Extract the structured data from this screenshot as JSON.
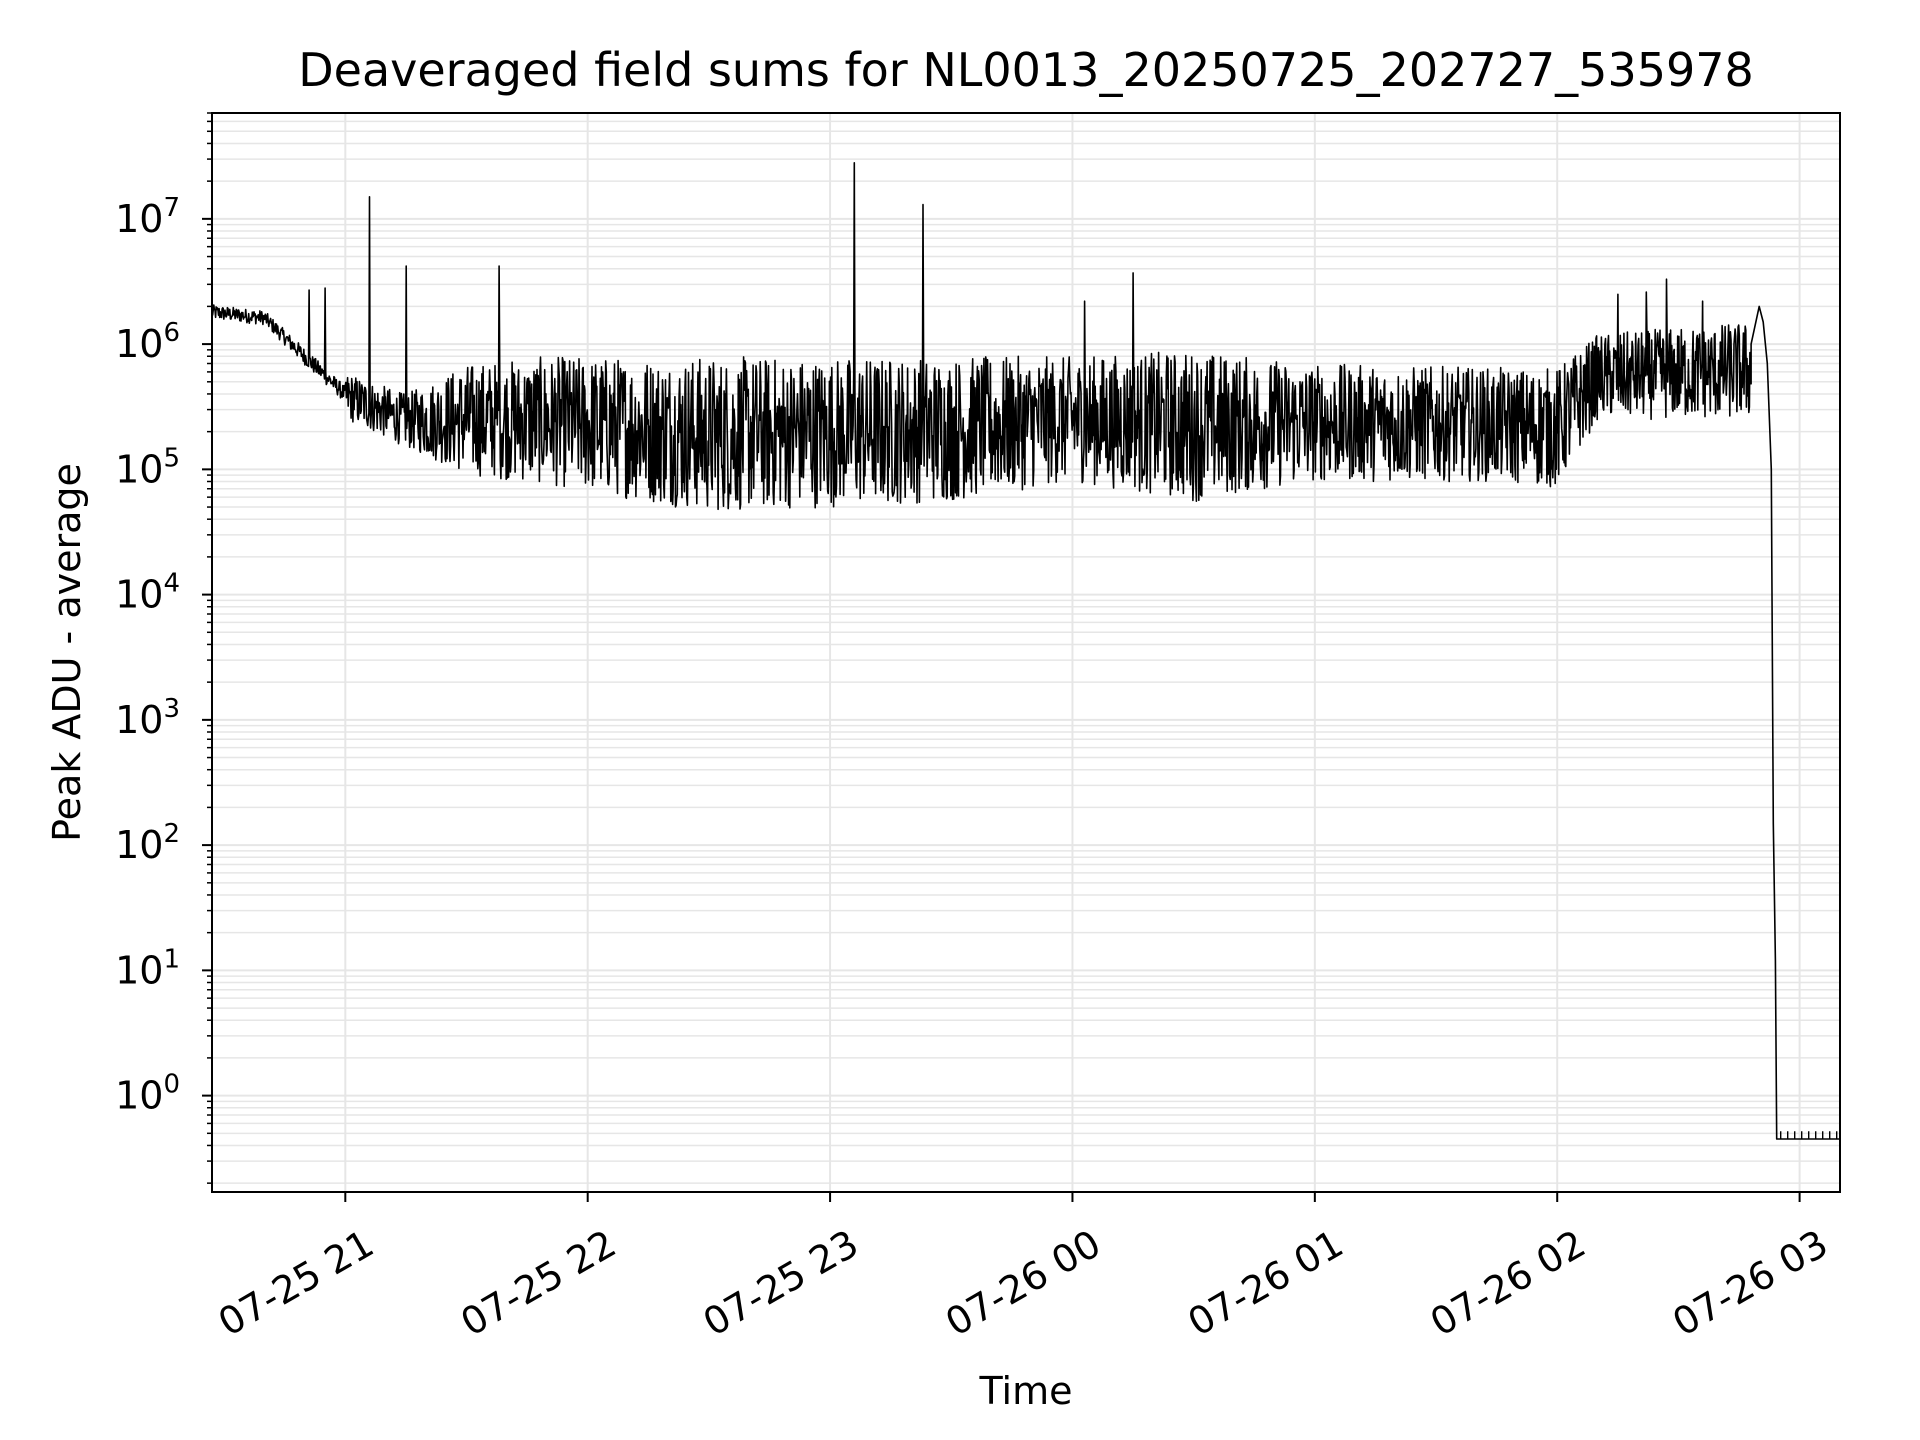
{
  "chart_data": {
    "type": "line",
    "title": "Deaveraged field sums for NL0013_20250725_202727_535978",
    "xlabel": "Time",
    "ylabel": "Peak ADU - average",
    "yscale": "log",
    "grid": true,
    "line_color": "#000000",
    "grid_color": "#e6e6e6",
    "x_ticks": [
      "07-25 21",
      "07-25 22",
      "07-25 23",
      "07-26 00",
      "07-26 01",
      "07-26 02",
      "07-26 03"
    ],
    "x_range": [
      "2025-07-25 20:27",
      "2025-07-26 03:10"
    ],
    "y_tick_labels": [
      {
        "base": "10",
        "exp": "0"
      },
      {
        "base": "10",
        "exp": "1"
      },
      {
        "base": "10",
        "exp": "2"
      },
      {
        "base": "10",
        "exp": "3"
      },
      {
        "base": "10",
        "exp": "4"
      },
      {
        "base": "10",
        "exp": "5"
      },
      {
        "base": "10",
        "exp": "6"
      },
      {
        "base": "10",
        "exp": "7"
      }
    ],
    "ylim": [
      0.17,
      70000000
    ],
    "envelope": [
      {
        "t": "2025-07-25 20:27",
        "lo": 1200000,
        "hi": 2600000
      },
      {
        "t": "2025-07-25 20:40",
        "lo": 1100000,
        "hi": 2300000
      },
      {
        "t": "2025-07-25 20:50",
        "lo": 500000,
        "hi": 1200000
      },
      {
        "t": "2025-07-25 21:00",
        "lo": 250000,
        "hi": 600000
      },
      {
        "t": "2025-07-25 21:15",
        "lo": 150000,
        "hi": 400000
      },
      {
        "t": "2025-07-25 21:30",
        "lo": 90000,
        "hi": 700000
      },
      {
        "t": "2025-07-25 21:50",
        "lo": 75000,
        "hi": 800000
      },
      {
        "t": "2025-07-25 22:30",
        "lo": 45000,
        "hi": 800000
      },
      {
        "t": "2025-07-25 23:30",
        "lo": 55000,
        "hi": 800000
      },
      {
        "t": "2025-07-26 00:00",
        "lo": 80000,
        "hi": 800000
      },
      {
        "t": "2025-07-26 00:30",
        "lo": 55000,
        "hi": 900000
      },
      {
        "t": "2025-07-26 01:00",
        "lo": 80000,
        "hi": 700000
      },
      {
        "t": "2025-07-26 01:45",
        "lo": 80000,
        "hi": 650000
      },
      {
        "t": "2025-07-26 02:00",
        "lo": 70000,
        "hi": 650000
      },
      {
        "t": "2025-07-26 02:10",
        "lo": 250000,
        "hi": 1200000
      },
      {
        "t": "2025-07-26 02:45",
        "lo": 250000,
        "hi": 1500000
      }
    ],
    "spikes": [
      {
        "t": "2025-07-25 20:51",
        "value": 2700000
      },
      {
        "t": "2025-07-25 20:55",
        "value": 2800000
      },
      {
        "t": "2025-07-25 21:06",
        "value": 15000000
      },
      {
        "t": "2025-07-25 21:15",
        "value": 4200000
      },
      {
        "t": "2025-07-25 21:38",
        "value": 4200000
      },
      {
        "t": "2025-07-25 23:06",
        "value": 28000000
      },
      {
        "t": "2025-07-25 23:23",
        "value": 13000000
      },
      {
        "t": "2025-07-26 00:03",
        "value": 2200000
      },
      {
        "t": "2025-07-26 00:15",
        "value": 3700000
      },
      {
        "t": "2025-07-26 02:15",
        "value": 2500000
      },
      {
        "t": "2025-07-26 02:22",
        "value": 2600000
      },
      {
        "t": "2025-07-26 02:27",
        "value": 3300000
      },
      {
        "t": "2025-07-26 02:36",
        "value": 2200000
      }
    ],
    "tail": [
      {
        "t": "2025-07-26 02:48",
        "value": 1000000
      },
      {
        "t": "2025-07-26 02:50",
        "value": 2000000
      },
      {
        "t": "2025-07-26 02:51",
        "value": 1500000
      },
      {
        "t": "2025-07-26 02:52",
        "value": 700000
      },
      {
        "t": "2025-07-26 02:53",
        "value": 100000
      },
      {
        "t": "2025-07-26 02:53:30",
        "value": 150
      },
      {
        "t": "2025-07-26 02:54",
        "value": 12
      },
      {
        "t": "2025-07-26 02:54:20",
        "value": 0.45
      },
      {
        "t": "2025-07-26 03:10",
        "value": 0.45
      }
    ]
  }
}
